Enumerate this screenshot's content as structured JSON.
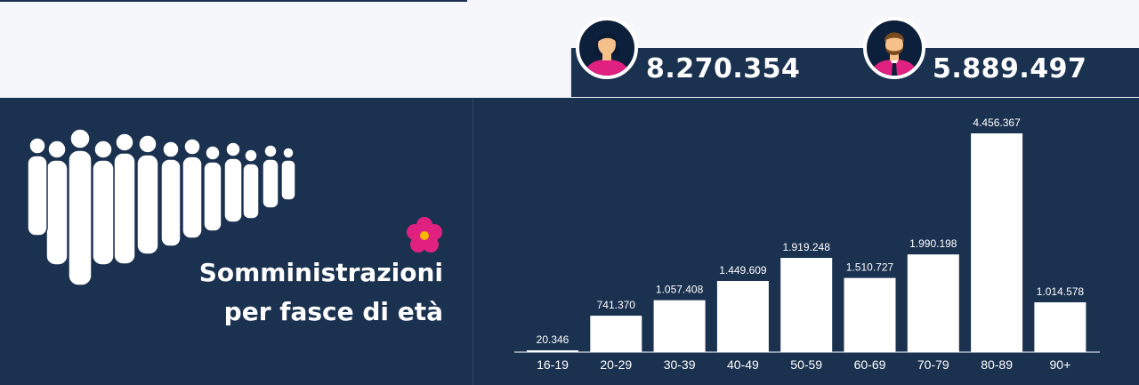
{
  "women": {
    "count": "8.270.354",
    "icon": "female-avatar-icon"
  },
  "men": {
    "count": "5.889.497",
    "icon": "male-avatar-icon"
  },
  "title": {
    "line1": "Somministrazioni",
    "line2": "per fasce di età"
  },
  "colors": {
    "navy": "#1b3150",
    "dark_navy": "#0c1f3b",
    "bar": "#ffffff",
    "accent_pink": "#e0217f",
    "skin": "#f6c08b",
    "flower_center": "#f5b800"
  },
  "chart_data": {
    "type": "bar",
    "categories": [
      "16-19",
      "20-29",
      "30-39",
      "40-49",
      "50-59",
      "60-69",
      "70-79",
      "80-89",
      "90+"
    ],
    "values": [
      20346,
      741370,
      1057408,
      1449609,
      1919248,
      1510727,
      1990198,
      4456367,
      1014578
    ],
    "value_labels": [
      "20.346",
      "741.370",
      "1.057.408",
      "1.449.609",
      "1.919.248",
      "1.510.727",
      "1.990.198",
      "4.456.367",
      "1.014.578"
    ],
    "title": "Somministrazioni per fasce di età",
    "xlabel": "",
    "ylabel": "",
    "ylim": [
      0,
      4456367
    ],
    "grid": false,
    "legend": "none"
  }
}
